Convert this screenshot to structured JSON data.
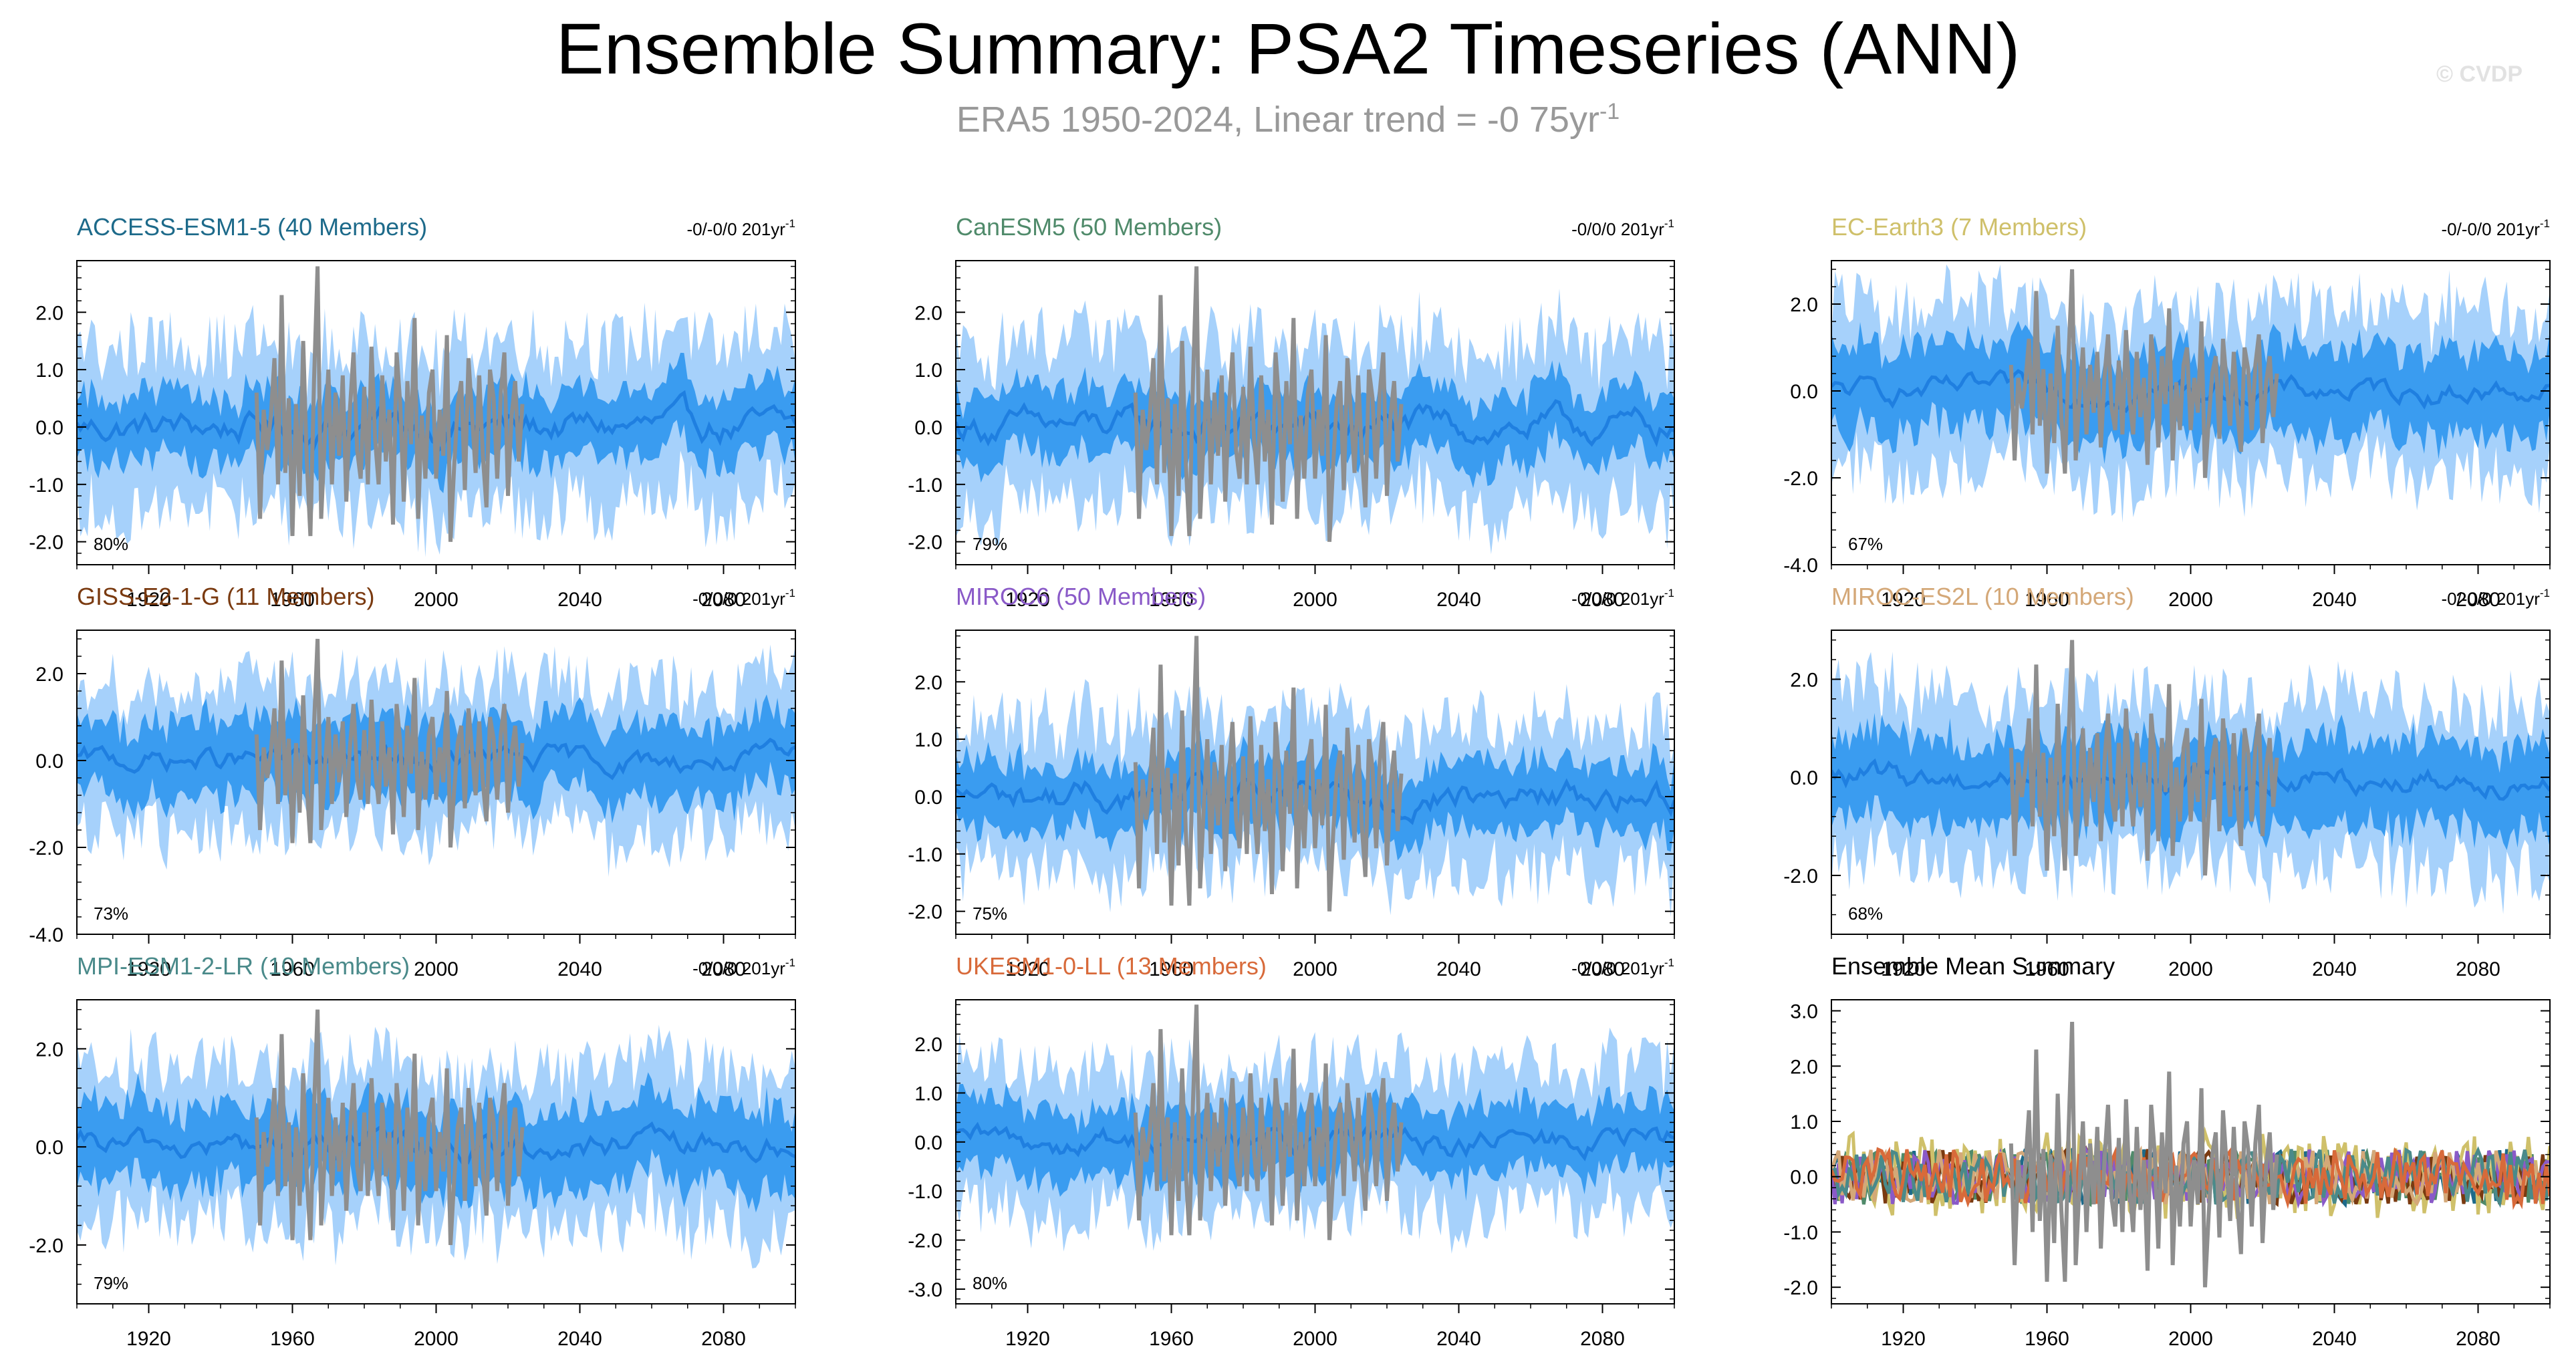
{
  "header": {
    "title": "Ensemble Summary: PSA2 Timeseries (ANN)",
    "subtitle": "ERA5 1950-2024, Linear trend = -0 75yr",
    "subtitle_sup": "-1",
    "copyright": "© CVDP"
  },
  "colors": {
    "band_outer": "#a6d1fb",
    "band_inner": "#3a9cf0",
    "ensemble_mean": "#1f7fe0",
    "observations": "#8e8e8e"
  },
  "chart_data": [
    {
      "id": "access",
      "type": "line",
      "title": "ACCESS-ESM1-5 (40 Members)",
      "title_color": "#1d6a8a",
      "trend": "-0/-0/0 201yr",
      "trend_sup": "-1",
      "percent": "80%",
      "ylim": [
        -2.4,
        2.9
      ],
      "yticks": [
        2.0,
        1.0,
        0.0,
        -1.0,
        -2.0
      ],
      "ytick_labels": [
        "2.0",
        "1.0",
        "0.0",
        "-1.0",
        "-2.0"
      ],
      "xlim": [
        1900,
        2100
      ],
      "xticks": [
        1920,
        1960,
        2000,
        2040,
        2080
      ],
      "xtick_labels": [
        "1920",
        "1960",
        "2000",
        "2040",
        "2080"
      ],
      "spread_inner": 0.55,
      "spread_outer": 1.35
    },
    {
      "id": "canesm",
      "type": "line",
      "title": "CanESM5 (50 Members)",
      "title_color": "#4f8a6a",
      "trend": "-0/0/0 201yr",
      "trend_sup": "-1",
      "percent": "79%",
      "ylim": [
        -2.4,
        2.9
      ],
      "yticks": [
        2.0,
        1.0,
        0.0,
        -1.0,
        -2.0
      ],
      "ytick_labels": [
        "2.0",
        "1.0",
        "0.0",
        "-1.0",
        "-2.0"
      ],
      "xlim": [
        1900,
        2100
      ],
      "xticks": [
        1920,
        1960,
        2000,
        2040,
        2080
      ],
      "xtick_labels": [
        "1920",
        "1960",
        "2000",
        "2040",
        "2080"
      ],
      "spread_inner": 0.55,
      "spread_outer": 1.35
    },
    {
      "id": "ecearth",
      "type": "line",
      "title": "EC-Earth3 (7 Members)",
      "title_color": "#cfc06a",
      "trend": "-0/-0/0 201yr",
      "trend_sup": "-1",
      "percent": "67%",
      "ylim": [
        -4.0,
        3.0
      ],
      "yticks": [
        2.0,
        0.0,
        -2.0,
        -4.0
      ],
      "ytick_labels": [
        "2.0",
        "0.0",
        "-2.0",
        "-4.0"
      ],
      "xlim": [
        1900,
        2100
      ],
      "xticks": [
        1920,
        1960,
        2000,
        2040,
        2080
      ],
      "xtick_labels": [
        "1920",
        "1960",
        "2000",
        "2040",
        "2080"
      ],
      "spread_inner": 0.9,
      "spread_outer": 1.8
    },
    {
      "id": "giss",
      "type": "line",
      "title": "GISS-E2-1-G (11 Members)",
      "title_color": "#7a3a10",
      "trend": "-0/0/0 201yr",
      "trend_sup": "-1",
      "percent": "73%",
      "ylim": [
        -4.0,
        3.0
      ],
      "yticks": [
        2.0,
        0.0,
        -2.0,
        -4.0
      ],
      "ytick_labels": [
        "2.0",
        "0.0",
        "-2.0",
        "-4.0"
      ],
      "xlim": [
        1900,
        2100
      ],
      "xticks": [
        1920,
        1960,
        2000,
        2040,
        2080
      ],
      "xtick_labels": [
        "1920",
        "1960",
        "2000",
        "2040",
        "2080"
      ],
      "spread_inner": 0.8,
      "spread_outer": 1.6
    },
    {
      "id": "miroc6",
      "type": "line",
      "title": "MIROC6 (50 Members)",
      "title_color": "#8a5ac8",
      "trend": "-0/0/0 201yr",
      "trend_sup": "-1",
      "percent": "75%",
      "ylim": [
        -2.4,
        2.9
      ],
      "yticks": [
        2.0,
        1.0,
        0.0,
        -1.0,
        -2.0
      ],
      "ytick_labels": [
        "2.0",
        "1.0",
        "0.0",
        "-1.0",
        "-2.0"
      ],
      "xlim": [
        1900,
        2100
      ],
      "xticks": [
        1920,
        1960,
        2000,
        2040,
        2080
      ],
      "xtick_labels": [
        "1920",
        "1960",
        "2000",
        "2040",
        "2080"
      ],
      "spread_inner": 0.55,
      "spread_outer": 1.25
    },
    {
      "id": "mirocesl",
      "type": "line",
      "title": "MIROC-ES2L (10 Members)",
      "title_color": "#d4a878",
      "trend": "-0/-0/0 201yr",
      "trend_sup": "-1",
      "percent": "68%",
      "ylim": [
        -3.2,
        3.0
      ],
      "yticks": [
        2.0,
        0.0,
        -2.0
      ],
      "ytick_labels": [
        "2.0",
        "0.0",
        "-2.0"
      ],
      "xlim": [
        1900,
        2100
      ],
      "xticks": [
        1920,
        1960,
        2000,
        2040,
        2080
      ],
      "xtick_labels": [
        "1920",
        "1960",
        "2000",
        "2040",
        "2080"
      ],
      "spread_inner": 0.8,
      "spread_outer": 1.6
    },
    {
      "id": "mpi",
      "type": "line",
      "title": "MPI-ESM1-2-LR (10 Members)",
      "title_color": "#4a8a8a",
      "trend": "-0/0/0 201yr",
      "trend_sup": "-1",
      "percent": "79%",
      "ylim": [
        -3.2,
        3.0
      ],
      "yticks": [
        2.0,
        0.0,
        -2.0
      ],
      "ytick_labels": [
        "2.0",
        "0.0",
        "-2.0"
      ],
      "xlim": [
        1900,
        2100
      ],
      "xticks": [
        1920,
        1960,
        2000,
        2040,
        2080
      ],
      "xtick_labels": [
        "1920",
        "1960",
        "2000",
        "2040",
        "2080"
      ],
      "spread_inner": 0.75,
      "spread_outer": 1.5
    },
    {
      "id": "ukesm",
      "type": "line",
      "title": "UKESM1-0-LL (13 Members)",
      "title_color": "#d86a3a",
      "trend": "-0/0/0 201yr",
      "trend_sup": "-1",
      "percent": "80%",
      "ylim": [
        -3.3,
        2.9
      ],
      "yticks": [
        2.0,
        1.0,
        0.0,
        -1.0,
        -2.0,
        -3.0
      ],
      "ytick_labels": [
        "2.0",
        "1.0",
        "0.0",
        "-1.0",
        "-2.0",
        "-3.0"
      ],
      "xlim": [
        1900,
        2100
      ],
      "xticks": [
        1920,
        1960,
        2000,
        2040,
        2080
      ],
      "xtick_labels": [
        "1920",
        "1960",
        "2000",
        "2040",
        "2080"
      ],
      "spread_inner": 0.65,
      "spread_outer": 1.4
    },
    {
      "id": "summary",
      "type": "line",
      "title": "Ensemble Mean Summary",
      "title_color": "#000000",
      "trend": "",
      "trend_sup": "",
      "percent": "",
      "ylim": [
        -2.3,
        3.2
      ],
      "yticks": [
        3.0,
        2.0,
        1.0,
        0.0,
        -1.0,
        -2.0
      ],
      "ytick_labels": [
        "3.0",
        "2.0",
        "1.0",
        "0.0",
        "-1.0",
        "-2.0"
      ],
      "xlim": [
        1900,
        2100
      ],
      "xticks": [
        1920,
        1960,
        2000,
        2040,
        2080
      ],
      "xtick_labels": [
        "1920",
        "1960",
        "2000",
        "2040",
        "2080"
      ],
      "summary": true,
      "series_colors": [
        "#1d6a8a",
        "#4f8a6a",
        "#cfc06a",
        "#7a3a10",
        "#8a5ac8",
        "#d4a878",
        "#4a8a8a",
        "#d86a3a"
      ]
    }
  ],
  "observations": {
    "name": "ERA5",
    "years": [
      1950,
      1951,
      1952,
      1953,
      1954,
      1955,
      1956,
      1957,
      1958,
      1959,
      1960,
      1961,
      1962,
      1963,
      1964,
      1965,
      1966,
      1967,
      1968,
      1969,
      1970,
      1971,
      1972,
      1973,
      1974,
      1975,
      1976,
      1977,
      1978,
      1979,
      1980,
      1981,
      1982,
      1983,
      1984,
      1985,
      1986,
      1987,
      1988,
      1989,
      1990,
      1991,
      1992,
      1993,
      1994,
      1995,
      1996,
      1997,
      1998,
      1999,
      2000,
      2001,
      2002,
      2003,
      2004,
      2005,
      2006,
      2007,
      2008,
      2009,
      2010,
      2011,
      2012,
      2013,
      2014,
      2015,
      2016,
      2017,
      2018,
      2019,
      2020,
      2021,
      2022,
      2023,
      2024
    ],
    "values": [
      0.6,
      -1.6,
      0.3,
      -0.4,
      0.2,
      1.2,
      -1.0,
      2.3,
      -0.8,
      0.5,
      -1.9,
      0.4,
      -1.2,
      1.5,
      -0.6,
      -1.9,
      0.8,
      2.8,
      -1.6,
      -0.2,
      1.0,
      -1.0,
      0.6,
      -0.5,
      0.9,
      -1.3,
      0.3,
      1.3,
      -0.4,
      -0.9,
      0.7,
      -1.0,
      1.4,
      -0.2,
      -1.0,
      0.9,
      -0.6,
      0.3,
      -1.7,
      1.3,
      0.4,
      -1.3,
      0.8,
      -0.3,
      1.9,
      -1.6,
      0.2,
      -0.9,
      0.6,
      1.0,
      -0.9,
      0.3,
      -0.5,
      1.6,
      -2.0,
      -0.7,
      0.4,
      0.8,
      -1.1,
      1.2,
      0.2,
      -0.8,
      0.9,
      -0.5,
      -1.4,
      1.0,
      0.5,
      -0.9,
      0.6,
      1.3,
      -1.2,
      0.2,
      0.8,
      -0.6,
      0.4
    ]
  }
}
